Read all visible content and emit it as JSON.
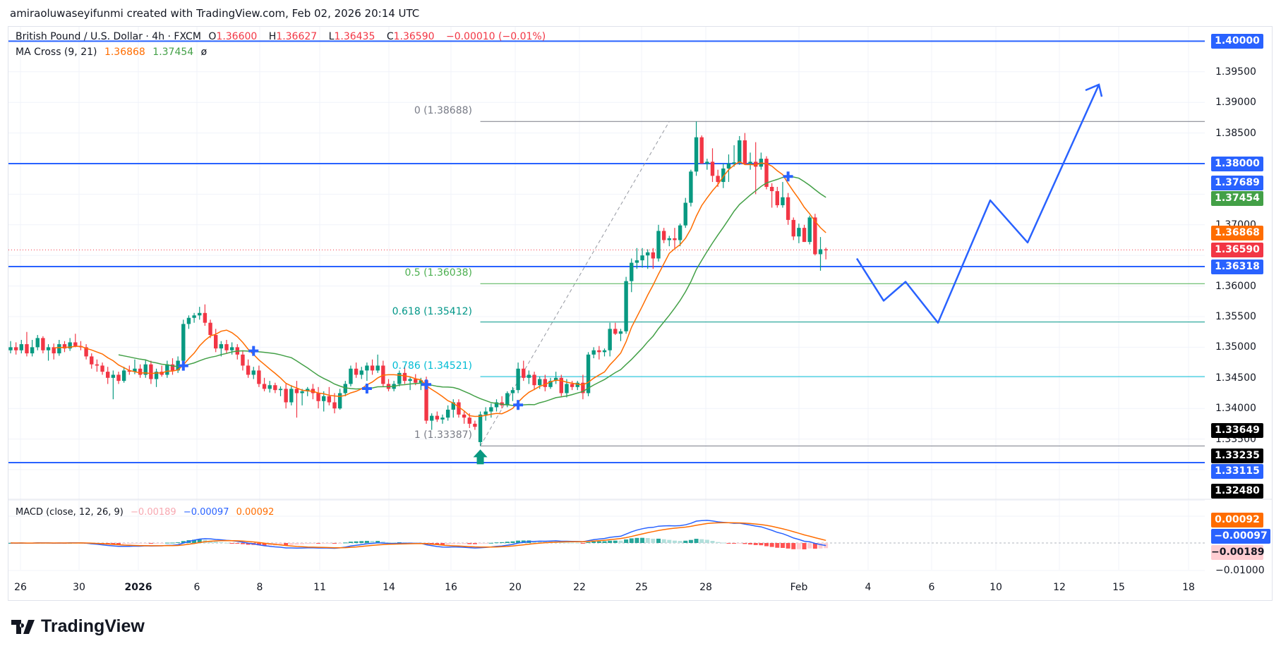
{
  "credit": "amiraoluwaseyifunmi created with TradingView.com, Feb 02, 2026 20:14 UTC",
  "legend": {
    "symbol": "British Pound / U.S. Dollar · 4h · FXCM",
    "o_label": "O",
    "o": "1.36600",
    "h_label": "H",
    "h": "1.36627",
    "l_label": "L",
    "l": "1.36435",
    "c_label": "C",
    "c": "1.36590",
    "change": "−0.00010 (−0.01%)",
    "ma_name": "MA Cross (9, 21)",
    "ma_fast": "1.36868",
    "ma_slow": "1.37454",
    "ma_icon": "ø",
    "macd_name": "MACD (close, 12, 26, 9)",
    "macd_hist": "−0.00189",
    "macd_line": "−0.00097",
    "macd_signal": "0.00092"
  },
  "colors": {
    "up": "#089981",
    "down": "#f23645",
    "ma_fast": "#ff6d00",
    "ma_slow": "#43a047",
    "line": "#2962ff",
    "hist_up": "#26a69a",
    "hist_up_weak": "#b2dfdb",
    "hist_down": "#ff5252",
    "hist_down_weak": "#ffcdd2"
  },
  "chart_data": {
    "type": "candlestick",
    "symbol": "GBPUSD",
    "timeframe": "4h",
    "ylim": [
      1.3225,
      1.4025
    ],
    "grid": true,
    "price_ticks": [
      "1.39500",
      "1.39000",
      "1.38500",
      "1.37000",
      "1.36000",
      "1.35500",
      "1.35000",
      "1.34500",
      "1.34000",
      "1.33500"
    ],
    "x_ticks": [
      "26",
      "30",
      "2026",
      "6",
      "8",
      "11",
      "14",
      "16",
      "20",
      "22",
      "25",
      "28",
      "Feb",
      "4",
      "6",
      "10",
      "12",
      "15",
      "18"
    ],
    "ohlc": [
      [
        1.3495,
        1.351,
        1.349,
        1.35
      ],
      [
        1.35,
        1.3508,
        1.3488,
        1.3495
      ],
      [
        1.3495,
        1.3512,
        1.349,
        1.3505
      ],
      [
        1.3505,
        1.3525,
        1.3485,
        1.349
      ],
      [
        1.349,
        1.3512,
        1.3485,
        1.35
      ],
      [
        1.35,
        1.352,
        1.3495,
        1.3515
      ],
      [
        1.3515,
        1.3518,
        1.349,
        1.3495
      ],
      [
        1.3495,
        1.3505,
        1.3478,
        1.35
      ],
      [
        1.35,
        1.3506,
        1.348,
        1.349
      ],
      [
        1.349,
        1.3512,
        1.3486,
        1.3505
      ],
      [
        1.3505,
        1.351,
        1.3492,
        1.3498
      ],
      [
        1.3498,
        1.3515,
        1.3494,
        1.3508
      ],
      [
        1.3508,
        1.3522,
        1.35,
        1.3502
      ],
      [
        1.3502,
        1.351,
        1.3495,
        1.35
      ],
      [
        1.35,
        1.3505,
        1.348,
        1.3485
      ],
      [
        1.3485,
        1.349,
        1.3465,
        1.3472
      ],
      [
        1.3472,
        1.348,
        1.346,
        1.347
      ],
      [
        1.347,
        1.3475,
        1.3455,
        1.346
      ],
      [
        1.346,
        1.3468,
        1.344,
        1.345
      ],
      [
        1.345,
        1.3462,
        1.3415,
        1.3455
      ],
      [
        1.3455,
        1.346,
        1.344,
        1.3445
      ],
      [
        1.3445,
        1.3468,
        1.3442,
        1.3462
      ],
      [
        1.3462,
        1.347,
        1.3455,
        1.346
      ],
      [
        1.346,
        1.348,
        1.3456,
        1.3465
      ],
      [
        1.3465,
        1.3472,
        1.345,
        1.3455
      ],
      [
        1.3455,
        1.348,
        1.345,
        1.3472
      ],
      [
        1.3472,
        1.3478,
        1.344,
        1.3448
      ],
      [
        1.3448,
        1.3465,
        1.3435,
        1.346
      ],
      [
        1.346,
        1.347,
        1.3452,
        1.3455
      ],
      [
        1.3455,
        1.3478,
        1.345,
        1.3472
      ],
      [
        1.3472,
        1.3482,
        1.3455,
        1.3462
      ],
      [
        1.3462,
        1.3485,
        1.3458,
        1.3478
      ],
      [
        1.3478,
        1.3545,
        1.3475,
        1.3538
      ],
      [
        1.3538,
        1.3552,
        1.353,
        1.3548
      ],
      [
        1.3548,
        1.3556,
        1.354,
        1.3552
      ],
      [
        1.3552,
        1.3566,
        1.3545,
        1.3556
      ],
      [
        1.3556,
        1.357,
        1.3535,
        1.354
      ],
      [
        1.354,
        1.3545,
        1.3515,
        1.352
      ],
      [
        1.352,
        1.353,
        1.3492,
        1.3498
      ],
      [
        1.3498,
        1.351,
        1.3485,
        1.3505
      ],
      [
        1.3505,
        1.3512,
        1.349,
        1.3495
      ],
      [
        1.3495,
        1.3508,
        1.3488,
        1.35
      ],
      [
        1.35,
        1.3505,
        1.348,
        1.3488
      ],
      [
        1.3488,
        1.3495,
        1.3462,
        1.347
      ],
      [
        1.347,
        1.348,
        1.345,
        1.3455
      ],
      [
        1.3455,
        1.3468,
        1.3448,
        1.3462
      ],
      [
        1.3462,
        1.347,
        1.3435,
        1.344
      ],
      [
        1.344,
        1.345,
        1.3428,
        1.3432
      ],
      [
        1.3432,
        1.3445,
        1.3426,
        1.3438
      ],
      [
        1.3438,
        1.3442,
        1.3425,
        1.343
      ],
      [
        1.343,
        1.3436,
        1.342,
        1.3432
      ],
      [
        1.3432,
        1.344,
        1.34,
        1.341
      ],
      [
        1.341,
        1.3438,
        1.3405,
        1.3432
      ],
      [
        1.3432,
        1.3445,
        1.3385,
        1.3425
      ],
      [
        1.3425,
        1.3432,
        1.3405,
        1.3428
      ],
      [
        1.3428,
        1.3435,
        1.342,
        1.3432
      ],
      [
        1.3432,
        1.344,
        1.3415,
        1.3425
      ],
      [
        1.3425,
        1.3435,
        1.34,
        1.3412
      ],
      [
        1.3412,
        1.3428,
        1.3395,
        1.342
      ],
      [
        1.342,
        1.3435,
        1.3405,
        1.341
      ],
      [
        1.341,
        1.3425,
        1.3392,
        1.34
      ],
      [
        1.34,
        1.3432,
        1.3398,
        1.3425
      ],
      [
        1.3425,
        1.3445,
        1.342,
        1.344
      ],
      [
        1.344,
        1.347,
        1.3436,
        1.3465
      ],
      [
        1.3465,
        1.3475,
        1.345,
        1.3455
      ],
      [
        1.3455,
        1.3468,
        1.3448,
        1.3462
      ],
      [
        1.3462,
        1.3475,
        1.3445,
        1.347
      ],
      [
        1.347,
        1.348,
        1.3455,
        1.3462
      ],
      [
        1.3462,
        1.3488,
        1.3458,
        1.347
      ],
      [
        1.347,
        1.3478,
        1.3435,
        1.344
      ],
      [
        1.344,
        1.3448,
        1.3428,
        1.3432
      ],
      [
        1.3432,
        1.3445,
        1.3428,
        1.344
      ],
      [
        1.344,
        1.3462,
        1.3436,
        1.3458
      ],
      [
        1.3458,
        1.347,
        1.344,
        1.3445
      ],
      [
        1.3445,
        1.3452,
        1.343,
        1.3448
      ],
      [
        1.3448,
        1.3456,
        1.3438,
        1.3442
      ],
      [
        1.3442,
        1.345,
        1.343,
        1.3446
      ],
      [
        1.3446,
        1.3452,
        1.3375,
        1.338
      ],
      [
        1.338,
        1.3392,
        1.3365,
        1.3388
      ],
      [
        1.3388,
        1.3395,
        1.3378,
        1.3382
      ],
      [
        1.3382,
        1.339,
        1.3375,
        1.3385
      ],
      [
        1.3385,
        1.3405,
        1.338,
        1.3398
      ],
      [
        1.3398,
        1.3415,
        1.3385,
        1.341
      ],
      [
        1.341,
        1.3415,
        1.3385,
        1.339
      ],
      [
        1.339,
        1.3395,
        1.3375,
        1.3385
      ],
      [
        1.3385,
        1.3392,
        1.3368,
        1.3375
      ],
      [
        1.3375,
        1.338,
        1.3365,
        1.337
      ],
      [
        1.3345,
        1.3395,
        1.33387,
        1.339
      ],
      [
        1.339,
        1.3402,
        1.338,
        1.3395
      ],
      [
        1.3395,
        1.3408,
        1.3385,
        1.3402
      ],
      [
        1.3402,
        1.3415,
        1.3395,
        1.341
      ],
      [
        1.341,
        1.342,
        1.34,
        1.3405
      ],
      [
        1.3405,
        1.3428,
        1.3402,
        1.3425
      ],
      [
        1.3425,
        1.3435,
        1.3412,
        1.343
      ],
      [
        1.343,
        1.3475,
        1.3425,
        1.3465
      ],
      [
        1.3465,
        1.3478,
        1.3445,
        1.345
      ],
      [
        1.345,
        1.3462,
        1.344,
        1.3455
      ],
      [
        1.3455,
        1.346,
        1.343,
        1.3438
      ],
      [
        1.3438,
        1.3452,
        1.3432,
        1.3448
      ],
      [
        1.3448,
        1.3455,
        1.3428,
        1.3435
      ],
      [
        1.3435,
        1.345,
        1.3432,
        1.3445
      ],
      [
        1.3445,
        1.346,
        1.344,
        1.345
      ],
      [
        1.345,
        1.3455,
        1.342,
        1.3425
      ],
      [
        1.3425,
        1.3448,
        1.3418,
        1.344
      ],
      [
        1.344,
        1.3445,
        1.343,
        1.3435
      ],
      [
        1.3435,
        1.3445,
        1.343,
        1.3442
      ],
      [
        1.3442,
        1.3455,
        1.3415,
        1.3425
      ],
      [
        1.3425,
        1.3492,
        1.342,
        1.3488
      ],
      [
        1.3488,
        1.35,
        1.3482,
        1.3495
      ],
      [
        1.3495,
        1.3502,
        1.348,
        1.3492
      ],
      [
        1.3492,
        1.3498,
        1.3485,
        1.3495
      ],
      [
        1.3495,
        1.354,
        1.3485,
        1.353
      ],
      [
        1.353,
        1.354,
        1.352,
        1.3522
      ],
      [
        1.3522,
        1.353,
        1.351,
        1.3526
      ],
      [
        1.3526,
        1.3615,
        1.3522,
        1.3608
      ],
      [
        1.3608,
        1.3645,
        1.359,
        1.3638
      ],
      [
        1.3638,
        1.3662,
        1.3628,
        1.3642
      ],
      [
        1.3642,
        1.3662,
        1.363,
        1.365
      ],
      [
        1.365,
        1.366,
        1.3628,
        1.3655
      ],
      [
        1.3655,
        1.3662,
        1.3628,
        1.3645
      ],
      [
        1.3645,
        1.37,
        1.364,
        1.369
      ],
      [
        1.369,
        1.3695,
        1.367,
        1.3675
      ],
      [
        1.3675,
        1.3682,
        1.3665,
        1.3678
      ],
      [
        1.3678,
        1.3695,
        1.3662,
        1.3675
      ],
      [
        1.3675,
        1.3702,
        1.3665,
        1.3699
      ],
      [
        1.3699,
        1.3744,
        1.3695,
        1.3736
      ],
      [
        1.3736,
        1.379,
        1.373,
        1.3787
      ],
      [
        1.3787,
        1.38688,
        1.378,
        1.3843
      ],
      [
        1.3843,
        1.3846,
        1.38,
        1.38
      ],
      [
        1.38,
        1.3808,
        1.379,
        1.3803
      ],
      [
        1.3803,
        1.3825,
        1.377,
        1.378
      ],
      [
        1.378,
        1.379,
        1.3762,
        1.377
      ],
      [
        1.377,
        1.38,
        1.376,
        1.3792
      ],
      [
        1.3792,
        1.3815,
        1.377,
        1.38
      ],
      [
        1.38,
        1.383,
        1.3795,
        1.3802
      ],
      [
        1.3802,
        1.3845,
        1.3798,
        1.3838
      ],
      [
        1.3838,
        1.385,
        1.3798,
        1.38
      ],
      [
        1.38,
        1.3818,
        1.379,
        1.3803
      ],
      [
        1.3803,
        1.3835,
        1.375,
        1.3795
      ],
      [
        1.3795,
        1.3818,
        1.379,
        1.3808
      ],
      [
        1.3808,
        1.3812,
        1.3758,
        1.3762
      ],
      [
        1.3762,
        1.3768,
        1.3728,
        1.3755
      ],
      [
        1.3755,
        1.3762,
        1.3728,
        1.3732
      ],
      [
        1.3732,
        1.377,
        1.3728,
        1.3745
      ],
      [
        1.3745,
        1.3752,
        1.37,
        1.3708
      ],
      [
        1.3708,
        1.3712,
        1.3675,
        1.3681
      ],
      [
        1.3681,
        1.3702,
        1.367,
        1.3695
      ],
      [
        1.3695,
        1.37,
        1.3672,
        1.3672
      ],
      [
        1.3672,
        1.3715,
        1.3668,
        1.3712
      ],
      [
        1.3712,
        1.3718,
        1.365,
        1.3652
      ],
      [
        1.3652,
        1.368,
        1.3625,
        1.366
      ],
      [
        1.366,
        1.36627,
        1.36435,
        1.3659
      ]
    ],
    "horizontal_levels": [
      1.4,
      1.38,
      1.36318,
      1.33115
    ],
    "last_price": 1.3659,
    "fib": [
      {
        "label": "0 (1.38688)",
        "price": 1.38688,
        "color": "#787b86"
      },
      {
        "label": "0.5 (1.36038)",
        "price": 1.36038,
        "color": "#4caf50"
      },
      {
        "label": "0.618 (1.35412)",
        "price": 1.35412,
        "color": "#009688"
      },
      {
        "label": "0.786 (1.34521)",
        "price": 1.34521,
        "color": "#00bcd4"
      },
      {
        "label": "1 (1.33387)",
        "price": 1.33387,
        "color": "#787b86"
      }
    ],
    "projection_prices": [
      1.3645,
      1.3576,
      1.3607,
      1.354,
      1.374,
      1.3671,
      1.3929
    ],
    "price_badges": [
      {
        "text": "1.40000",
        "price": 1.4,
        "bg": "#2962ff",
        "fg": "#ffffff"
      },
      {
        "text": "1.38000",
        "price": 1.38,
        "bg": "#2962ff",
        "fg": "#ffffff"
      },
      {
        "text": "1.37689",
        "price": 1.37689,
        "bg": "#2962ff",
        "fg": "#ffffff"
      },
      {
        "text": "1.37454",
        "price": 1.37454,
        "bg": "#43a047",
        "fg": "#ffffff"
      },
      {
        "text": "1.36868",
        "price": 1.36868,
        "bg": "#ff6d00",
        "fg": "#ffffff"
      },
      {
        "text": "1.36590",
        "price": 1.3659,
        "bg": "#f23645",
        "fg": "#ffffff"
      },
      {
        "text": "1.36318",
        "price": 1.36318,
        "bg": "#2962ff",
        "fg": "#ffffff"
      },
      {
        "text": "1.33649",
        "price": 1.33649,
        "bg": "#000000",
        "fg": "#ffffff"
      },
      {
        "text": "1.33235",
        "price": 1.33235,
        "bg": "#000000",
        "fg": "#ffffff"
      },
      {
        "text": "1.33115",
        "price": 1.33115,
        "bg": "#2962ff",
        "fg": "#ffffff"
      },
      {
        "text": "1.32480",
        "price": 1.3248,
        "bg": "#000000",
        "fg": "#ffffff"
      }
    ],
    "macd_badges": [
      {
        "text": "0.00092",
        "bg": "#ff6d00",
        "fg": "#ffffff"
      },
      {
        "text": "−0.00097",
        "bg": "#2962ff",
        "fg": "#ffffff"
      },
      {
        "text": "−0.00189",
        "bg": "#ffcdd2",
        "fg": "#131722"
      }
    ],
    "macd_tick": "−0.01000"
  },
  "logo": "TradingView"
}
